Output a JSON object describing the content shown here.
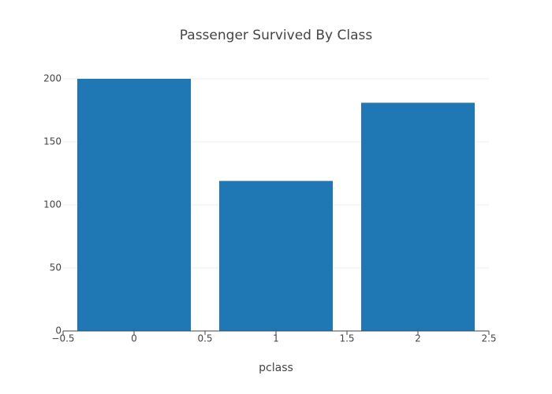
{
  "chart_data": {
    "type": "bar",
    "title": "Passenger Survived By Class",
    "x_label": "pclass",
    "x": [
      0,
      1,
      2
    ],
    "values": [
      200,
      119,
      181
    ],
    "color": "#1f77b4",
    "xlim": [
      -0.5,
      2.5
    ],
    "xticks": [
      {
        "value": -0.5,
        "label": "−0.5"
      },
      0,
      0.5,
      1,
      1.5,
      2,
      2.5
    ],
    "ylim": [
      0,
      200
    ],
    "yticks": [
      0,
      50,
      100,
      150,
      200
    ],
    "grid": true
  }
}
